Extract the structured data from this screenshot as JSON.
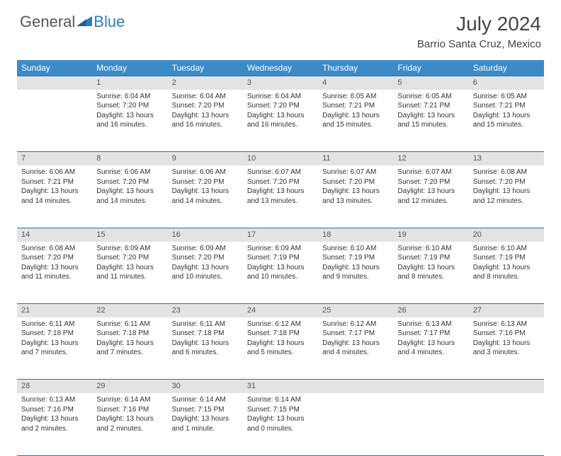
{
  "logo": {
    "text1": "General",
    "text2": "Blue"
  },
  "title": "July 2024",
  "location": "Barrio Santa Cruz, Mexico",
  "colors": {
    "header_bg": "#3b8bc9",
    "header_text": "#ffffff",
    "daynum_bg": "#e3e3e3",
    "border": "#2f6fa8",
    "body_text": "#333333",
    "title_text": "#444444",
    "logo_blue": "#2f7bbf",
    "logo_gray": "#555555"
  },
  "day_headers": [
    "Sunday",
    "Monday",
    "Tuesday",
    "Wednesday",
    "Thursday",
    "Friday",
    "Saturday"
  ],
  "weeks": [
    {
      "nums": [
        "",
        "1",
        "2",
        "3",
        "4",
        "5",
        "6"
      ],
      "cells": [
        null,
        {
          "sunrise": "6:04 AM",
          "sunset": "7:20 PM",
          "daylight": "13 hours and 16 minutes."
        },
        {
          "sunrise": "6:04 AM",
          "sunset": "7:20 PM",
          "daylight": "13 hours and 16 minutes."
        },
        {
          "sunrise": "6:04 AM",
          "sunset": "7:20 PM",
          "daylight": "13 hours and 16 minutes."
        },
        {
          "sunrise": "6:05 AM",
          "sunset": "7:21 PM",
          "daylight": "13 hours and 15 minutes."
        },
        {
          "sunrise": "6:05 AM",
          "sunset": "7:21 PM",
          "daylight": "13 hours and 15 minutes."
        },
        {
          "sunrise": "6:05 AM",
          "sunset": "7:21 PM",
          "daylight": "13 hours and 15 minutes."
        }
      ]
    },
    {
      "nums": [
        "7",
        "8",
        "9",
        "10",
        "11",
        "12",
        "13"
      ],
      "cells": [
        {
          "sunrise": "6:06 AM",
          "sunset": "7:21 PM",
          "daylight": "13 hours and 14 minutes."
        },
        {
          "sunrise": "6:06 AM",
          "sunset": "7:20 PM",
          "daylight": "13 hours and 14 minutes."
        },
        {
          "sunrise": "6:06 AM",
          "sunset": "7:20 PM",
          "daylight": "13 hours and 14 minutes."
        },
        {
          "sunrise": "6:07 AM",
          "sunset": "7:20 PM",
          "daylight": "13 hours and 13 minutes."
        },
        {
          "sunrise": "6:07 AM",
          "sunset": "7:20 PM",
          "daylight": "13 hours and 13 minutes."
        },
        {
          "sunrise": "6:07 AM",
          "sunset": "7:20 PM",
          "daylight": "13 hours and 12 minutes."
        },
        {
          "sunrise": "6:08 AM",
          "sunset": "7:20 PM",
          "daylight": "13 hours and 12 minutes."
        }
      ]
    },
    {
      "nums": [
        "14",
        "15",
        "16",
        "17",
        "18",
        "19",
        "20"
      ],
      "cells": [
        {
          "sunrise": "6:08 AM",
          "sunset": "7:20 PM",
          "daylight": "13 hours and 11 minutes."
        },
        {
          "sunrise": "6:09 AM",
          "sunset": "7:20 PM",
          "daylight": "13 hours and 11 minutes."
        },
        {
          "sunrise": "6:09 AM",
          "sunset": "7:20 PM",
          "daylight": "13 hours and 10 minutes."
        },
        {
          "sunrise": "6:09 AM",
          "sunset": "7:19 PM",
          "daylight": "13 hours and 10 minutes."
        },
        {
          "sunrise": "6:10 AM",
          "sunset": "7:19 PM",
          "daylight": "13 hours and 9 minutes."
        },
        {
          "sunrise": "6:10 AM",
          "sunset": "7:19 PM",
          "daylight": "13 hours and 8 minutes."
        },
        {
          "sunrise": "6:10 AM",
          "sunset": "7:19 PM",
          "daylight": "13 hours and 8 minutes."
        }
      ]
    },
    {
      "nums": [
        "21",
        "22",
        "23",
        "24",
        "25",
        "26",
        "27"
      ],
      "cells": [
        {
          "sunrise": "6:11 AM",
          "sunset": "7:18 PM",
          "daylight": "13 hours and 7 minutes."
        },
        {
          "sunrise": "6:11 AM",
          "sunset": "7:18 PM",
          "daylight": "13 hours and 7 minutes."
        },
        {
          "sunrise": "6:11 AM",
          "sunset": "7:18 PM",
          "daylight": "13 hours and 6 minutes."
        },
        {
          "sunrise": "6:12 AM",
          "sunset": "7:18 PM",
          "daylight": "13 hours and 5 minutes."
        },
        {
          "sunrise": "6:12 AM",
          "sunset": "7:17 PM",
          "daylight": "13 hours and 4 minutes."
        },
        {
          "sunrise": "6:13 AM",
          "sunset": "7:17 PM",
          "daylight": "13 hours and 4 minutes."
        },
        {
          "sunrise": "6:13 AM",
          "sunset": "7:16 PM",
          "daylight": "13 hours and 3 minutes."
        }
      ]
    },
    {
      "nums": [
        "28",
        "29",
        "30",
        "31",
        "",
        "",
        ""
      ],
      "cells": [
        {
          "sunrise": "6:13 AM",
          "sunset": "7:16 PM",
          "daylight": "13 hours and 2 minutes."
        },
        {
          "sunrise": "6:14 AM",
          "sunset": "7:16 PM",
          "daylight": "13 hours and 2 minutes."
        },
        {
          "sunrise": "6:14 AM",
          "sunset": "7:15 PM",
          "daylight": "13 hours and 1 minute."
        },
        {
          "sunrise": "6:14 AM",
          "sunset": "7:15 PM",
          "daylight": "13 hours and 0 minutes."
        },
        null,
        null,
        null
      ]
    }
  ],
  "labels": {
    "sunrise": "Sunrise:",
    "sunset": "Sunset:",
    "daylight": "Daylight:"
  }
}
